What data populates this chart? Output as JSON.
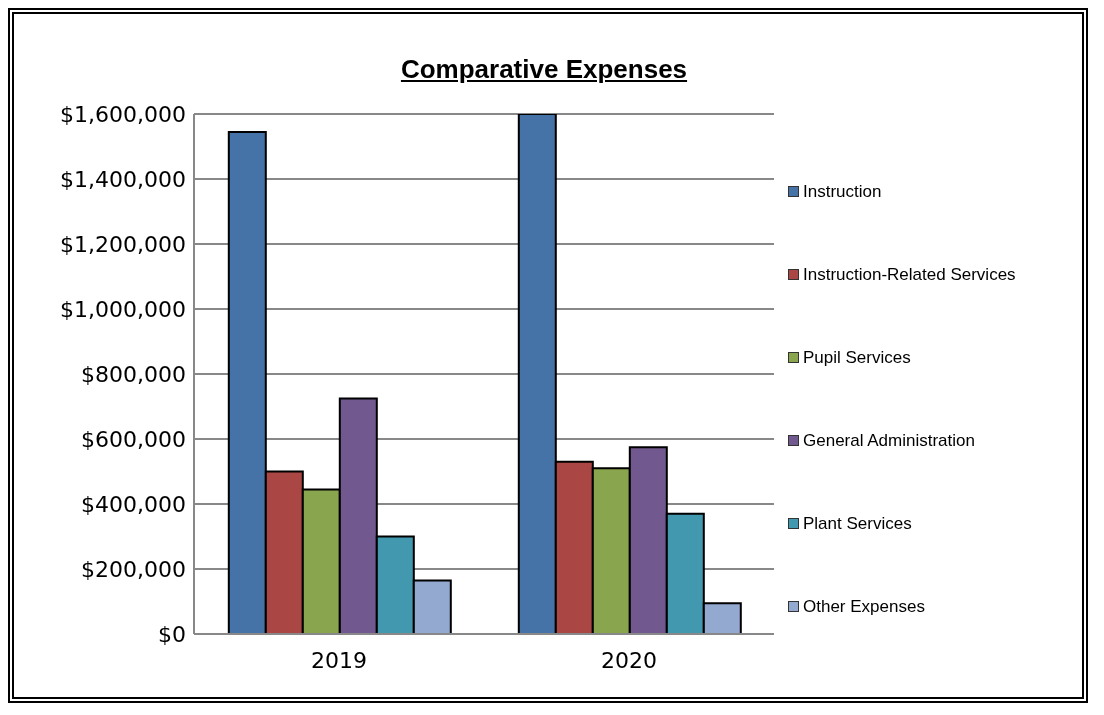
{
  "chart_data": {
    "type": "bar",
    "title": "Comparative Expenses",
    "categories": [
      "2019",
      "2020"
    ],
    "series": [
      {
        "name": "Instruction",
        "color": "#4572a7",
        "values": [
          1545000,
          1600000
        ]
      },
      {
        "name": "Instruction-Related Services",
        "color": "#aa4643",
        "values": [
          500000,
          530000
        ]
      },
      {
        "name": "Pupil Services",
        "color": "#89a54e",
        "values": [
          445000,
          510000
        ]
      },
      {
        "name": "General Administration",
        "color": "#71588f",
        "values": [
          725000,
          575000
        ]
      },
      {
        "name": "Plant Services",
        "color": "#4198af",
        "values": [
          300000,
          370000
        ]
      },
      {
        "name": "Other Expenses",
        "color": "#93a9d0",
        "values": [
          165000,
          95000
        ]
      }
    ],
    "ylim": [
      0,
      1600000
    ],
    "yticks": [
      {
        "value": 0,
        "label": "$0"
      },
      {
        "value": 200000,
        "label": "$200,000"
      },
      {
        "value": 400000,
        "label": "$400,000"
      },
      {
        "value": 600000,
        "label": "$600,000"
      },
      {
        "value": 800000,
        "label": "$800,000"
      },
      {
        "value": 1000000,
        "label": "$1,000,000"
      },
      {
        "value": 1200000,
        "label": "$1,200,000"
      },
      {
        "value": 1400000,
        "label": "$1,400,000"
      },
      {
        "value": 1600000,
        "label": "$1,600,000"
      }
    ],
    "grid": "y",
    "legend": "right"
  }
}
